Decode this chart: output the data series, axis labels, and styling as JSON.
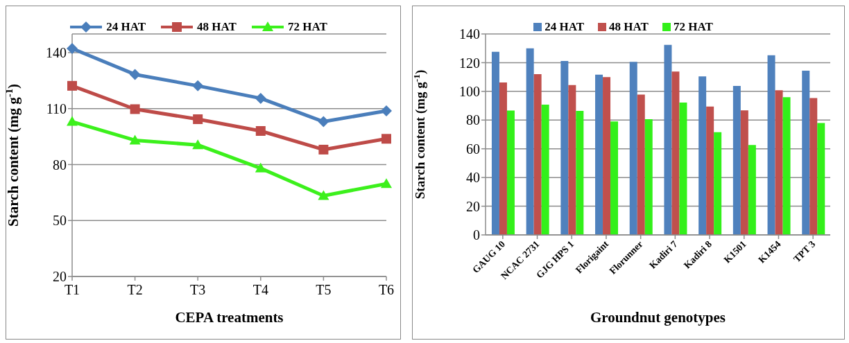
{
  "chart_data": [
    {
      "type": "line",
      "xlabel": "CEPA treatments",
      "ylabel": "Starch content (mg g$^{-1}$)",
      "categories": [
        "T1",
        "T2",
        "T3",
        "T4",
        "T5",
        "T6"
      ],
      "series": [
        {
          "name": "24 HAT",
          "color": "#4a7ebb",
          "marker": "diamond",
          "values": [
            142.2,
            128.3,
            122.2,
            115.5,
            103,
            108.8
          ]
        },
        {
          "name": "48 HAT",
          "color": "#be4b48",
          "marker": "square",
          "values": [
            122.2,
            109.7,
            104.3,
            98,
            88,
            93.8
          ]
        },
        {
          "name": "72 HAT",
          "color": "#3cf01c",
          "marker": "triangle",
          "values": [
            103,
            93,
            90.5,
            78,
            63.3,
            69.7
          ]
        }
      ],
      "ylim": [
        20,
        150
      ],
      "yticks": [
        20,
        50,
        80,
        110,
        140
      ],
      "grid": "y",
      "legend": "top",
      "line_style": "solid"
    },
    {
      "type": "bar",
      "xlabel": "Groundnut genotypes",
      "ylabel": "Starch content (mg g$^{-1}$)",
      "categories": [
        "GAUG 10",
        "NCAC 2731",
        "GJG HPS 1",
        "Florigaint",
        "Florunner",
        "Kadiri 7",
        "Kadiri 8",
        "K1501",
        "K1454",
        "TPT 3"
      ],
      "series": [
        {
          "name": "24 HAT",
          "color": "#4f81bd",
          "values": [
            127.6,
            130,
            121.2,
            111.6,
            120.6,
            132.4,
            110.4,
            103.8,
            125.2,
            114.4
          ]
        },
        {
          "name": "48 HAT",
          "color": "#c0504d",
          "values": [
            106.2,
            112,
            104.4,
            110,
            97.8,
            113.8,
            89.4,
            86.8,
            100.8,
            95.4
          ]
        },
        {
          "name": "72 HAT",
          "color": "#33f01a",
          "values": [
            86.6,
            90.8,
            86.4,
            79,
            80.6,
            92.2,
            71.6,
            62.6,
            96,
            78
          ]
        }
      ],
      "ylim": [
        0,
        140
      ],
      "yticks": [
        0,
        20,
        40,
        60,
        80,
        100,
        120,
        140
      ],
      "grid": "y",
      "legend": "top"
    }
  ]
}
